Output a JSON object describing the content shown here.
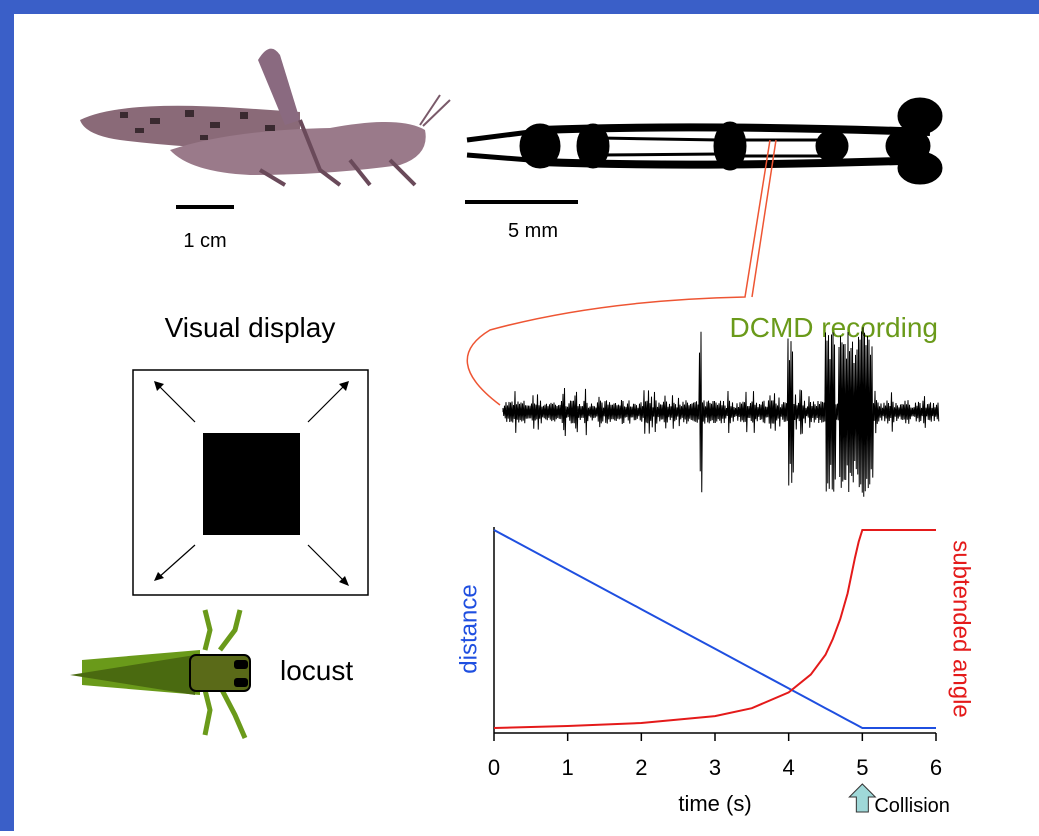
{
  "figure": {
    "scale_bar_photo": "1 cm",
    "scale_bar_cord": "5 mm",
    "display_title": "Visual display",
    "recording_title": "DCMD recording",
    "animal_label": "locust"
  },
  "chart_data": {
    "type": "line",
    "xlabel": "time (s)",
    "x": [
      0,
      1,
      2,
      3,
      3.5,
      4,
      4.3,
      4.5,
      4.6,
      4.7,
      4.8,
      4.9,
      4.95,
      5,
      6
    ],
    "xlim": [
      0,
      6
    ],
    "xticks": [
      0,
      1,
      2,
      3,
      4,
      5,
      6
    ],
    "ylim": [
      0,
      1
    ],
    "y2lim": [
      0,
      1
    ],
    "series": [
      {
        "name": "distance",
        "color": "#1f4fe0",
        "values": [
          1,
          0.8,
          0.6,
          0.4,
          0.3,
          0.2,
          0.14,
          0.1,
          0.08,
          0.06,
          0.04,
          0.02,
          0.01,
          0,
          0
        ]
      },
      {
        "name": "subtended angle",
        "color": "#e41a1a",
        "axis": "y2",
        "values": [
          0,
          0.01,
          0.025,
          0.06,
          0.1,
          0.18,
          0.27,
          0.37,
          0.45,
          0.55,
          0.68,
          0.86,
          0.94,
          1,
          1
        ]
      }
    ],
    "annotation": {
      "text": "Collision",
      "x": 5
    }
  }
}
